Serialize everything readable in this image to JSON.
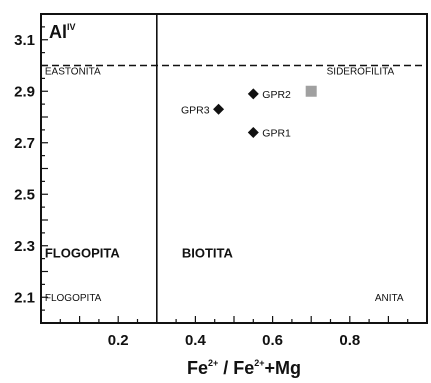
{
  "chart_data": {
    "type": "scatter",
    "title": "",
    "xlabel": {
      "base1": "Fe",
      "sup1": "2+",
      "mid": " / Fe",
      "sup2": "2+",
      "tail": "+Mg"
    },
    "ylabel": {
      "base": "Al",
      "sup": "IV"
    },
    "xlim": [
      0,
      1
    ],
    "ylim": [
      2.0,
      3.2
    ],
    "x_ticks": [
      0.2,
      0.4,
      0.6,
      0.8
    ],
    "x_tick_labels": [
      "0.2",
      "0.4",
      "0.6",
      "0.8"
    ],
    "y_ticks": [
      2.1,
      2.3,
      2.5,
      2.7,
      2.9,
      3.1
    ],
    "y_tick_labels": [
      "2.1",
      "2.3",
      "2.5",
      "2.7",
      "2.9",
      "3.1"
    ],
    "boundaries": {
      "vertical_x": 0.3,
      "horizontal_dashed_y": 3.0
    },
    "regions": [
      {
        "text": "EASTONITA",
        "x": 0.01,
        "y": 2.965,
        "style": "small"
      },
      {
        "text": "SIDEROFILITA",
        "x": 0.74,
        "y": 2.965,
        "style": "small"
      },
      {
        "text": "FLOGOPITA",
        "x": 0.01,
        "y": 2.255,
        "style": "bold"
      },
      {
        "text": "BIOTITA",
        "x": 0.365,
        "y": 2.255,
        "style": "bold"
      },
      {
        "text": "FLOGOPITA",
        "x": 0.01,
        "y": 2.085,
        "style": "small"
      },
      {
        "text": "ANITA",
        "x": 0.865,
        "y": 2.085,
        "style": "small"
      }
    ],
    "series": [
      {
        "marker": "diamond",
        "color": "#111111",
        "points": [
          {
            "label": "GPR2",
            "x": 0.55,
            "y": 2.89
          },
          {
            "label": "GPR3",
            "x": 0.46,
            "y": 2.83
          },
          {
            "label": "GPR1",
            "x": 0.55,
            "y": 2.74
          }
        ]
      },
      {
        "marker": "square",
        "color": "#a0a0a0",
        "points": [
          {
            "x": 0.7,
            "y": 2.9
          }
        ]
      }
    ],
    "grid": false
  }
}
